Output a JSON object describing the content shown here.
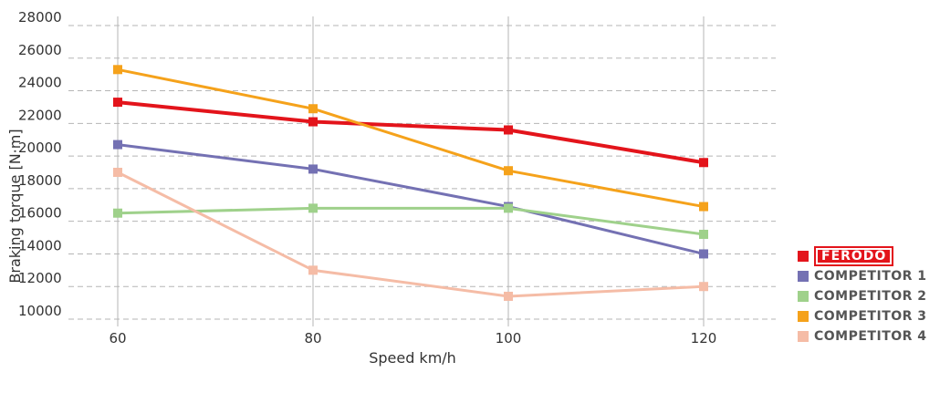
{
  "chart_data": {
    "type": "line",
    "xlabel": "Speed km/h",
    "ylabel": "Braking torque [N·m]",
    "x": [
      60,
      80,
      100,
      120
    ],
    "x_tick_labels": [
      "60",
      "80",
      "100",
      "120"
    ],
    "y_tick_labels": [
      "10000",
      "12000",
      "14000",
      "16000",
      "18000",
      "20000",
      "22000",
      "24000",
      "26000",
      "28000"
    ],
    "ylim": [
      10000,
      28000
    ],
    "grid": "horizontal dashed, vertical solid",
    "legend_position": "bottom-right",
    "series": [
      {
        "name": "FERODO",
        "color": "#e3141b",
        "values": [
          23300,
          22100,
          21600,
          19600
        ]
      },
      {
        "name": "COMPETITOR 1",
        "color": "#7471b3",
        "values": [
          20700,
          19200,
          16900,
          14000
        ]
      },
      {
        "name": "COMPETITOR 2",
        "color": "#9fd18b",
        "values": [
          16500,
          16800,
          16800,
          15200
        ]
      },
      {
        "name": "COMPETITOR 3",
        "color": "#f5a21b",
        "values": [
          25300,
          22900,
          19100,
          16900
        ]
      },
      {
        "name": "COMPETITOR 4",
        "color": "#f5bca6",
        "values": [
          19000,
          13000,
          11400,
          12000
        ]
      }
    ]
  }
}
